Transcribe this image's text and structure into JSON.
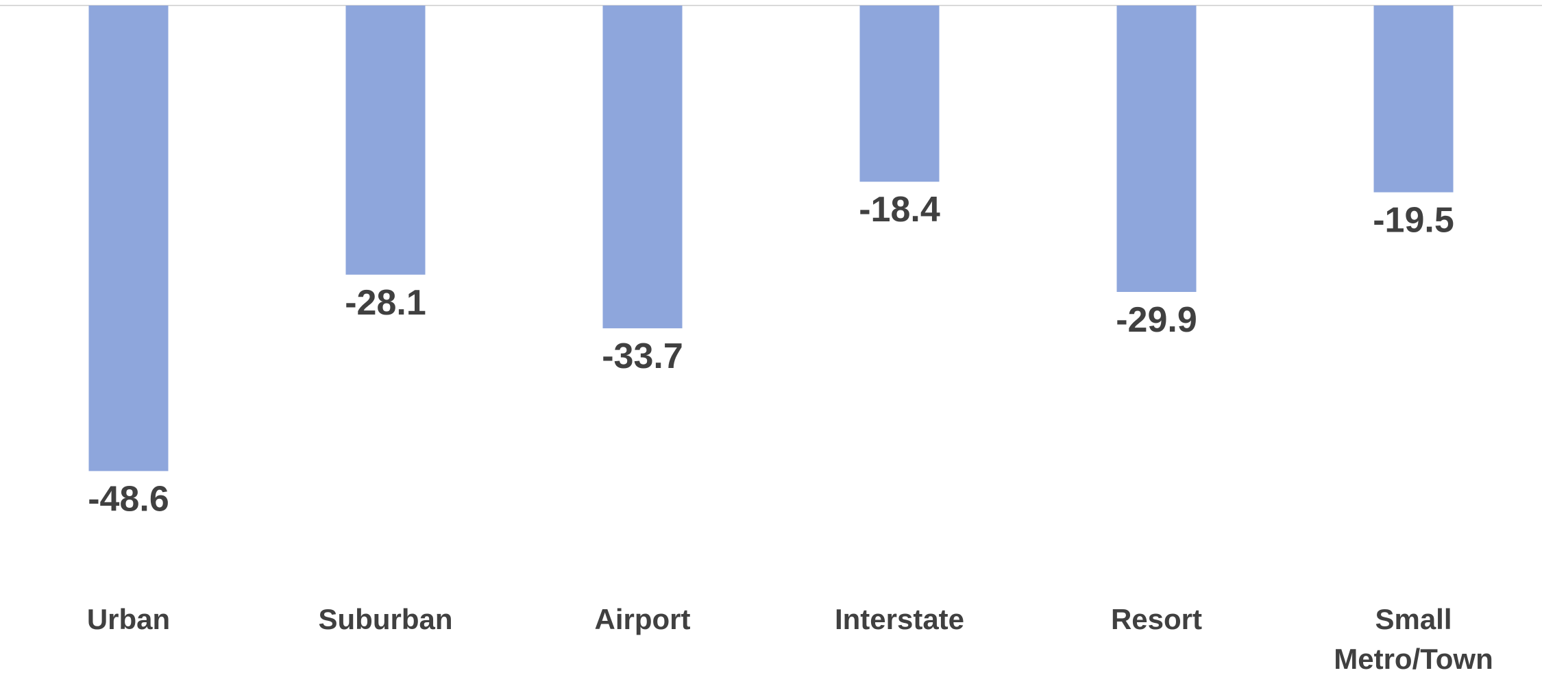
{
  "chart_data": {
    "type": "bar",
    "categories": [
      "Urban",
      "Suburban",
      "Airport",
      "Interstate",
      "Resort",
      "Small Metro/Town"
    ],
    "category_lines": [
      [
        "Urban"
      ],
      [
        "Suburban"
      ],
      [
        "Airport"
      ],
      [
        "Interstate"
      ],
      [
        "Resort"
      ],
      [
        "Small",
        "Metro/Town"
      ]
    ],
    "values": [
      -48.6,
      -28.1,
      -33.7,
      -18.4,
      -29.9,
      -19.5
    ],
    "data_labels": [
      "-48.6",
      "-28.1",
      "-33.7",
      "-18.4",
      "-29.9",
      "-19.5"
    ],
    "title": "",
    "xlabel": "",
    "ylabel": "",
    "ylim": [
      -71,
      0
    ],
    "grid": false,
    "legend": "none",
    "colors": {
      "bar": "#8ea6dc",
      "label_text": "#404040",
      "axis_line": "#d9d9d9"
    }
  }
}
